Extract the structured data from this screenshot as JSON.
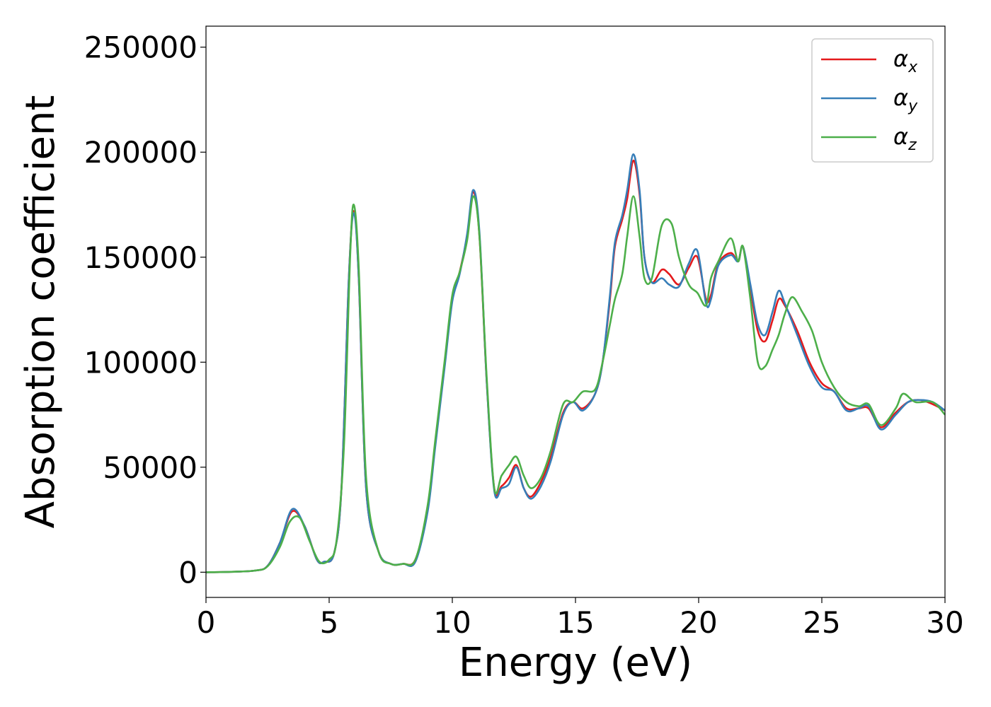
{
  "chart_data": {
    "type": "line",
    "title": "",
    "xlabel": "Energy (eV)",
    "ylabel": "Absorption coefficient",
    "xlim": [
      0,
      30
    ],
    "ylim": [
      -12000,
      260000
    ],
    "xticks": [
      0,
      5,
      10,
      15,
      20,
      25,
      30
    ],
    "yticks": [
      0,
      50000,
      100000,
      150000,
      200000,
      250000
    ],
    "grid": false,
    "legend_position": "top-right",
    "series": [
      {
        "name": "α_x",
        "legend_symbol": "α",
        "legend_subscript": "x",
        "color": "#e41a1c",
        "points": [
          [
            0,
            0
          ],
          [
            1,
            200
          ],
          [
            2,
            800
          ],
          [
            2.5,
            3000
          ],
          [
            3,
            14000
          ],
          [
            3.5,
            29000
          ],
          [
            4,
            22000
          ],
          [
            4.5,
            6000
          ],
          [
            4.8,
            5000
          ],
          [
            5.2,
            9000
          ],
          [
            5.5,
            40000
          ],
          [
            5.8,
            140000
          ],
          [
            6.0,
            172000
          ],
          [
            6.2,
            140000
          ],
          [
            6.5,
            40000
          ],
          [
            7,
            10000
          ],
          [
            7.5,
            4000
          ],
          [
            8,
            4000
          ],
          [
            8.5,
            6000
          ],
          [
            9,
            30000
          ],
          [
            9.3,
            60000
          ],
          [
            9.7,
            100000
          ],
          [
            10,
            130000
          ],
          [
            10.3,
            143000
          ],
          [
            10.6,
            160000
          ],
          [
            10.85,
            181000
          ],
          [
            11.1,
            160000
          ],
          [
            11.4,
            90000
          ],
          [
            11.7,
            40000
          ],
          [
            12,
            41000
          ],
          [
            12.3,
            45000
          ],
          [
            12.6,
            51000
          ],
          [
            12.9,
            40000
          ],
          [
            13.2,
            36000
          ],
          [
            13.6,
            43000
          ],
          [
            14,
            55000
          ],
          [
            14.5,
            76000
          ],
          [
            14.9,
            81000
          ],
          [
            15.3,
            78000
          ],
          [
            15.8,
            85000
          ],
          [
            16.1,
            100000
          ],
          [
            16.4,
            130000
          ],
          [
            16.6,
            155000
          ],
          [
            16.9,
            168000
          ],
          [
            17.1,
            178000
          ],
          [
            17.35,
            196000
          ],
          [
            17.6,
            180000
          ],
          [
            17.8,
            150000
          ],
          [
            18.1,
            138000
          ],
          [
            18.5,
            144000
          ],
          [
            18.8,
            142000
          ],
          [
            19.2,
            137000
          ],
          [
            19.6,
            145000
          ],
          [
            19.95,
            150000
          ],
          [
            20.3,
            130000
          ],
          [
            20.5,
            132000
          ],
          [
            20.8,
            147000
          ],
          [
            21.3,
            152000
          ],
          [
            21.6,
            148000
          ],
          [
            21.8,
            155000
          ],
          [
            22.1,
            135000
          ],
          [
            22.4,
            115000
          ],
          [
            22.7,
            110000
          ],
          [
            23,
            120000
          ],
          [
            23.25,
            130000
          ],
          [
            23.5,
            127000
          ],
          [
            24,
            115000
          ],
          [
            24.5,
            100000
          ],
          [
            25,
            90000
          ],
          [
            25.5,
            86000
          ],
          [
            26,
            78000
          ],
          [
            26.5,
            78000
          ],
          [
            26.9,
            78000
          ],
          [
            27.4,
            69000
          ],
          [
            28,
            76000
          ],
          [
            28.5,
            81000
          ],
          [
            29,
            82000
          ],
          [
            29.5,
            80000
          ],
          [
            30,
            77000
          ]
        ]
      },
      {
        "name": "α_y",
        "legend_symbol": "α",
        "legend_subscript": "y",
        "color": "#377eb8",
        "points": [
          [
            0,
            0
          ],
          [
            1,
            200
          ],
          [
            2,
            800
          ],
          [
            2.5,
            3000
          ],
          [
            3,
            14000
          ],
          [
            3.5,
            30000
          ],
          [
            4,
            22000
          ],
          [
            4.5,
            6000
          ],
          [
            4.8,
            5000
          ],
          [
            5.2,
            9000
          ],
          [
            5.5,
            40000
          ],
          [
            5.8,
            140000
          ],
          [
            6.0,
            171000
          ],
          [
            6.2,
            140000
          ],
          [
            6.5,
            40000
          ],
          [
            7,
            10000
          ],
          [
            7.5,
            4000
          ],
          [
            8,
            4000
          ],
          [
            8.5,
            5000
          ],
          [
            9,
            29000
          ],
          [
            9.3,
            59000
          ],
          [
            9.7,
            99000
          ],
          [
            10,
            129000
          ],
          [
            10.3,
            142000
          ],
          [
            10.6,
            161000
          ],
          [
            10.85,
            182000
          ],
          [
            11.1,
            162000
          ],
          [
            11.4,
            90000
          ],
          [
            11.7,
            39000
          ],
          [
            12,
            40000
          ],
          [
            12.3,
            42000
          ],
          [
            12.6,
            50000
          ],
          [
            12.9,
            40000
          ],
          [
            13.2,
            35000
          ],
          [
            13.6,
            41000
          ],
          [
            14,
            53000
          ],
          [
            14.5,
            75000
          ],
          [
            14.9,
            81000
          ],
          [
            15.3,
            77000
          ],
          [
            15.8,
            85000
          ],
          [
            16.1,
            100000
          ],
          [
            16.4,
            132000
          ],
          [
            16.6,
            157000
          ],
          [
            16.9,
            170000
          ],
          [
            17.1,
            182000
          ],
          [
            17.35,
            199000
          ],
          [
            17.6,
            182000
          ],
          [
            17.8,
            150000
          ],
          [
            18.1,
            138000
          ],
          [
            18.5,
            140000
          ],
          [
            18.8,
            137000
          ],
          [
            19.2,
            136000
          ],
          [
            19.6,
            147000
          ],
          [
            19.95,
            153000
          ],
          [
            20.3,
            128000
          ],
          [
            20.5,
            130000
          ],
          [
            20.8,
            146000
          ],
          [
            21.3,
            151000
          ],
          [
            21.6,
            148000
          ],
          [
            21.8,
            155000
          ],
          [
            22.1,
            137000
          ],
          [
            22.4,
            118000
          ],
          [
            22.7,
            113000
          ],
          [
            23,
            124000
          ],
          [
            23.25,
            134000
          ],
          [
            23.5,
            128000
          ],
          [
            24,
            113000
          ],
          [
            24.5,
            98000
          ],
          [
            25,
            88000
          ],
          [
            25.5,
            86000
          ],
          [
            26,
            77000
          ],
          [
            26.5,
            78000
          ],
          [
            26.9,
            79000
          ],
          [
            27.4,
            68000
          ],
          [
            28,
            75000
          ],
          [
            28.5,
            81000
          ],
          [
            29,
            82000
          ],
          [
            29.5,
            81000
          ],
          [
            30,
            77000
          ]
        ]
      },
      {
        "name": "α_z",
        "legend_symbol": "α",
        "legend_subscript": "z",
        "color": "#4daf4a",
        "points": [
          [
            0,
            0
          ],
          [
            1,
            200
          ],
          [
            2,
            800
          ],
          [
            2.5,
            2800
          ],
          [
            3,
            12000
          ],
          [
            3.4,
            24000
          ],
          [
            3.8,
            26000
          ],
          [
            4.2,
            15000
          ],
          [
            4.6,
            5000
          ],
          [
            5,
            6000
          ],
          [
            5.3,
            15000
          ],
          [
            5.6,
            60000
          ],
          [
            5.85,
            150000
          ],
          [
            6.0,
            175000
          ],
          [
            6.2,
            145000
          ],
          [
            6.5,
            45000
          ],
          [
            7,
            10000
          ],
          [
            7.5,
            4000
          ],
          [
            8,
            4000
          ],
          [
            8.5,
            6000
          ],
          [
            9,
            32000
          ],
          [
            9.3,
            62000
          ],
          [
            9.7,
            102000
          ],
          [
            10,
            132000
          ],
          [
            10.3,
            143000
          ],
          [
            10.6,
            158000
          ],
          [
            10.85,
            179000
          ],
          [
            11.1,
            160000
          ],
          [
            11.4,
            92000
          ],
          [
            11.7,
            40000
          ],
          [
            12,
            46000
          ],
          [
            12.3,
            51000
          ],
          [
            12.6,
            55000
          ],
          [
            12.9,
            46000
          ],
          [
            13.2,
            40000
          ],
          [
            13.6,
            45000
          ],
          [
            14,
            58000
          ],
          [
            14.5,
            80000
          ],
          [
            14.9,
            81000
          ],
          [
            15.3,
            86000
          ],
          [
            15.8,
            87000
          ],
          [
            16.1,
            100000
          ],
          [
            16.4,
            118000
          ],
          [
            16.6,
            130000
          ],
          [
            16.9,
            142000
          ],
          [
            17.1,
            160000
          ],
          [
            17.35,
            179000
          ],
          [
            17.6,
            160000
          ],
          [
            17.8,
            140000
          ],
          [
            18.1,
            140000
          ],
          [
            18.5,
            165000
          ],
          [
            18.9,
            166000
          ],
          [
            19.2,
            150000
          ],
          [
            19.6,
            137000
          ],
          [
            19.95,
            133000
          ],
          [
            20.3,
            127000
          ],
          [
            20.5,
            140000
          ],
          [
            20.8,
            148000
          ],
          [
            21.3,
            159000
          ],
          [
            21.6,
            148000
          ],
          [
            21.8,
            155000
          ],
          [
            22.1,
            130000
          ],
          [
            22.4,
            100000
          ],
          [
            22.7,
            98000
          ],
          [
            23,
            106000
          ],
          [
            23.25,
            113000
          ],
          [
            23.5,
            123000
          ],
          [
            23.8,
            131000
          ],
          [
            24.2,
            124000
          ],
          [
            24.6,
            115000
          ],
          [
            25,
            100000
          ],
          [
            25.5,
            88000
          ],
          [
            26,
            81000
          ],
          [
            26.5,
            79000
          ],
          [
            26.9,
            80000
          ],
          [
            27.4,
            70000
          ],
          [
            28,
            78000
          ],
          [
            28.3,
            85000
          ],
          [
            28.8,
            81000
          ],
          [
            29.5,
            81000
          ],
          [
            30,
            75000
          ]
        ]
      }
    ]
  }
}
